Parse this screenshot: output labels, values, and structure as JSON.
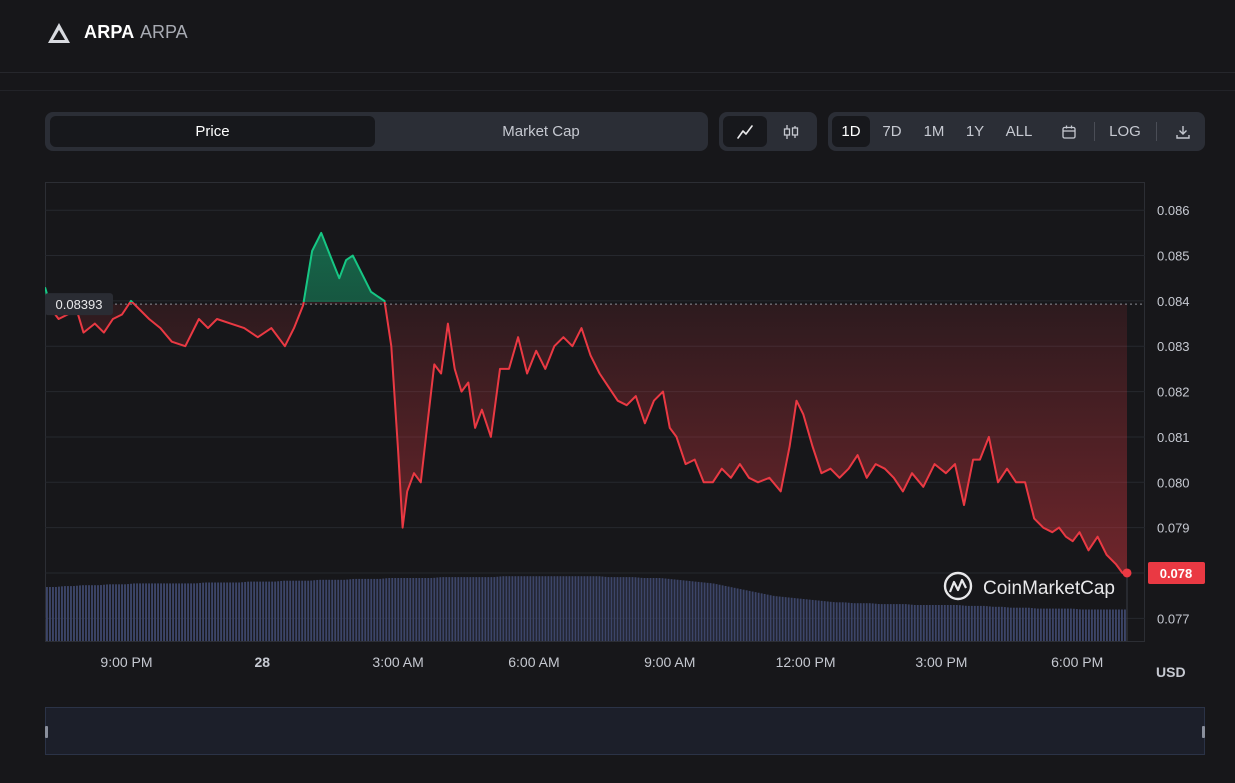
{
  "header": {
    "coin_name": "ARPA",
    "coin_symbol": "ARPA"
  },
  "toggle": {
    "price_label": "Price",
    "marketcap_label": "Market Cap"
  },
  "range": {
    "d1": "1D",
    "d7": "7D",
    "m1": "1M",
    "y1": "1Y",
    "all": "ALL",
    "log": "LOG"
  },
  "icons": {
    "logo": "arpa-logo-icon",
    "line": "line-chart-icon",
    "candle": "candlestick-icon",
    "calendar": "calendar-icon",
    "download": "download-icon",
    "cmc": "coinmarketcap-logo-icon"
  },
  "colors": {
    "up": "#16c784",
    "down": "#ea3943",
    "volume": "#3c4568",
    "background": "#17171a"
  },
  "chart_data": {
    "type": "line",
    "currency": "USD",
    "watermark": "CoinMarketCap",
    "reference_price": 0.08393,
    "reference_label": "0.08393",
    "current_price": 0.078,
    "current_label": "0.078",
    "ylim": [
      0.0765,
      0.0866
    ],
    "y_ticks": [
      "0.086",
      "0.085",
      "0.084",
      "0.083",
      "0.082",
      "0.081",
      "0.080",
      "0.079",
      "0.078",
      "0.077"
    ],
    "y_tick_values": [
      0.086,
      0.085,
      0.084,
      0.083,
      0.082,
      0.081,
      0.08,
      0.079,
      0.078,
      0.077
    ],
    "x_ticks": [
      "9:00 PM",
      "28",
      "3:00 AM",
      "6:00 AM",
      "9:00 AM",
      "12:00 PM",
      "3:00 PM",
      "6:00 PM"
    ],
    "x_tick_hours": [
      21,
      24,
      27,
      30,
      33,
      36,
      39,
      42
    ],
    "x_range_hours": [
      19.2,
      43.1
    ],
    "series": [
      {
        "x_hours": [
          19.2,
          19.35,
          19.5,
          19.7,
          19.9,
          20.05,
          20.3,
          20.5,
          20.7,
          20.9,
          21.1,
          21.3,
          21.5,
          21.75,
          22.0,
          22.3,
          22.6,
          22.8,
          23.0,
          23.3,
          23.6,
          23.9,
          24.2,
          24.5,
          24.7,
          24.9,
          25.1,
          25.3,
          25.5,
          25.7,
          25.85,
          26.0,
          26.2,
          26.4,
          26.55,
          26.7,
          26.85,
          27.0,
          27.1,
          27.2,
          27.35,
          27.5,
          27.65,
          27.8,
          27.95,
          28.1,
          28.25,
          28.4,
          28.55,
          28.7,
          28.85,
          29.05,
          29.25,
          29.45,
          29.65,
          29.85,
          30.05,
          30.25,
          30.45,
          30.65,
          30.85,
          31.05,
          31.25,
          31.45,
          31.65,
          31.85,
          32.05,
          32.25,
          32.45,
          32.65,
          32.85,
          33.0,
          33.15,
          33.35,
          33.55,
          33.75,
          33.95,
          34.15,
          34.35,
          34.55,
          34.75,
          34.95,
          35.2,
          35.45,
          35.65,
          35.8,
          35.95,
          36.15,
          36.35,
          36.55,
          36.75,
          36.95,
          37.15,
          37.35,
          37.55,
          37.75,
          37.95,
          38.15,
          38.35,
          38.6,
          38.85,
          39.1,
          39.3,
          39.5,
          39.7,
          39.85,
          40.05,
          40.25,
          40.45,
          40.65,
          40.85,
          41.05,
          41.25,
          41.45,
          41.6,
          41.75,
          41.9,
          42.05,
          42.25,
          42.45,
          42.65,
          42.85,
          43.0,
          43.1
        ],
        "values": [
          0.0843,
          0.0838,
          0.0836,
          0.0837,
          0.0838,
          0.0833,
          0.0835,
          0.0833,
          0.0836,
          0.0837,
          0.084,
          0.0838,
          0.0836,
          0.0834,
          0.0831,
          0.083,
          0.0836,
          0.0834,
          0.0836,
          0.0835,
          0.0834,
          0.0832,
          0.0834,
          0.083,
          0.0834,
          0.0839,
          0.0851,
          0.0855,
          0.085,
          0.0845,
          0.0849,
          0.085,
          0.0846,
          0.0842,
          0.0841,
          0.084,
          0.083,
          0.0807,
          0.079,
          0.0798,
          0.0802,
          0.08,
          0.0813,
          0.0826,
          0.0824,
          0.0835,
          0.0825,
          0.082,
          0.0822,
          0.0812,
          0.0816,
          0.081,
          0.0825,
          0.0825,
          0.0832,
          0.0824,
          0.0829,
          0.0825,
          0.083,
          0.0832,
          0.083,
          0.0834,
          0.0828,
          0.0824,
          0.0821,
          0.0818,
          0.0817,
          0.0819,
          0.0813,
          0.0818,
          0.082,
          0.0812,
          0.081,
          0.0804,
          0.0805,
          0.08,
          0.08,
          0.0803,
          0.0801,
          0.0804,
          0.0801,
          0.08,
          0.0801,
          0.0798,
          0.0808,
          0.0818,
          0.0815,
          0.0808,
          0.0802,
          0.0803,
          0.0801,
          0.0803,
          0.0806,
          0.0801,
          0.0804,
          0.0803,
          0.0801,
          0.0798,
          0.0802,
          0.0799,
          0.0804,
          0.0802,
          0.0804,
          0.0795,
          0.0805,
          0.0805,
          0.081,
          0.08,
          0.0803,
          0.08,
          0.08,
          0.0792,
          0.079,
          0.0789,
          0.079,
          0.0788,
          0.0787,
          0.0789,
          0.0785,
          0.0788,
          0.0784,
          0.0782,
          0.078,
          0.078
        ],
        "volume": [
          0.6,
          0.6,
          0.61,
          0.61,
          0.62,
          0.62,
          0.62,
          0.63,
          0.63,
          0.63,
          0.64,
          0.64,
          0.64,
          0.64,
          0.64,
          0.64,
          0.64,
          0.64,
          0.65,
          0.65,
          0.65,
          0.65,
          0.65,
          0.66,
          0.66,
          0.66,
          0.66,
          0.67,
          0.67,
          0.67,
          0.67,
          0.68,
          0.68,
          0.68,
          0.68,
          0.69,
          0.69,
          0.69,
          0.69,
          0.7,
          0.7,
          0.7,
          0.7,
          0.7,
          0.7,
          0.71,
          0.71,
          0.71,
          0.71,
          0.71,
          0.71,
          0.71,
          0.72,
          0.72,
          0.72,
          0.72,
          0.72,
          0.72,
          0.72,
          0.72,
          0.72,
          0.72,
          0.72,
          0.72,
          0.71,
          0.71,
          0.71,
          0.71,
          0.7,
          0.7,
          0.7,
          0.69,
          0.68,
          0.67,
          0.66,
          0.65,
          0.64,
          0.62,
          0.6,
          0.58,
          0.56,
          0.54,
          0.52,
          0.5,
          0.49,
          0.48,
          0.47,
          0.46,
          0.45,
          0.44,
          0.43,
          0.43,
          0.42,
          0.42,
          0.42,
          0.41,
          0.41,
          0.41,
          0.41,
          0.4,
          0.4,
          0.4,
          0.4,
          0.4,
          0.4,
          0.39,
          0.39,
          0.39,
          0.38,
          0.38,
          0.37,
          0.37,
          0.37,
          0.36,
          0.36,
          0.36,
          0.36,
          0.36,
          0.35,
          0.35,
          0.35,
          0.35,
          0.35,
          0.35
        ]
      }
    ]
  }
}
